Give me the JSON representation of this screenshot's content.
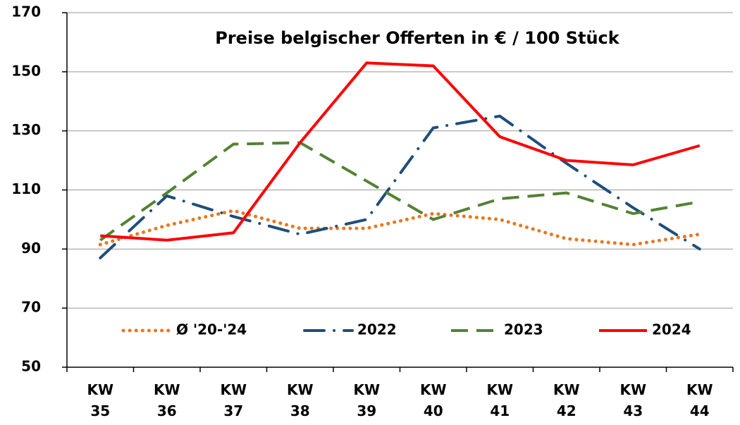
{
  "chart_data": {
    "type": "line",
    "title": "Preise belgischer Offerten in € / 100 Stück",
    "categories": [
      "KW 35",
      "KW 36",
      "KW 37",
      "KW 38",
      "KW 39",
      "KW 40",
      "KW 41",
      "KW 42",
      "KW 43",
      "KW 44"
    ],
    "series": [
      {
        "name": "Ø '20-'24",
        "color": "#e87722",
        "style": "dotted",
        "values": [
          91.5,
          98,
          103,
          97,
          97,
          102,
          100,
          93.5,
          91.5,
          95
        ]
      },
      {
        "name": "2022",
        "color": "#1f4e79",
        "style": "dashdot",
        "values": [
          87,
          108,
          101,
          95,
          100,
          131,
          135,
          119,
          104,
          90
        ]
      },
      {
        "name": "2023",
        "color": "#548235",
        "style": "dashed",
        "values": [
          93,
          109,
          125.5,
          126,
          113,
          100,
          107,
          109,
          102,
          106
        ]
      },
      {
        "name": "2024",
        "color": "#ff0000",
        "style": "solid",
        "values": [
          94.5,
          93,
          95.5,
          126,
          153,
          152,
          128,
          120,
          118.5,
          125
        ]
      }
    ],
    "ylim": [
      50,
      170
    ],
    "yticks": [
      50,
      70,
      90,
      110,
      130,
      150,
      170
    ],
    "grid": true,
    "legend": "bottom"
  }
}
